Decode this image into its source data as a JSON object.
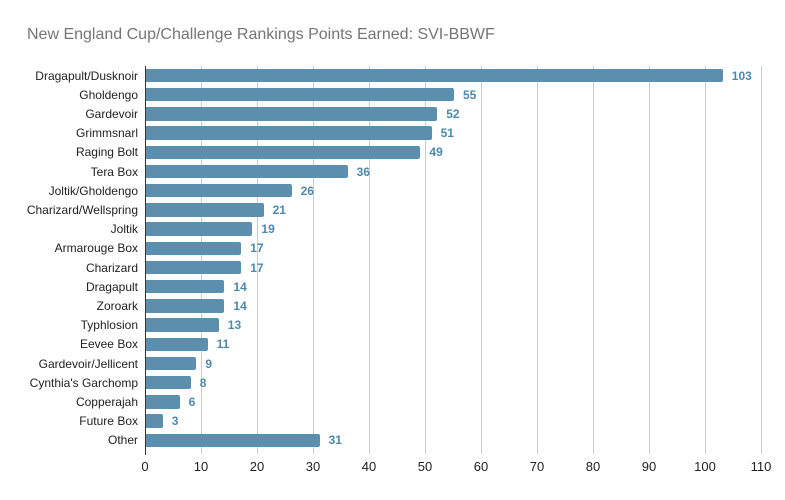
{
  "title": "New England Cup/Challenge Rankings Points Earned: SVI-BBWF",
  "colors": {
    "bar": "#5b8fad",
    "value_label": "#4d89ac",
    "title_text": "#757575",
    "axis_text": "#222222",
    "axis_line": "#333333",
    "gridline": "#cccccc",
    "background": "#ffffff"
  },
  "chart_data": {
    "type": "bar",
    "orientation": "horizontal",
    "title": "New England Cup/Challenge Rankings Points Earned: SVI-BBWF",
    "xlabel": "",
    "ylabel": "",
    "categories": [
      "Dragapult/Dusknoir",
      "Gholdengo",
      "Gardevoir",
      "Grimmsnarl",
      "Raging Bolt",
      "Tera Box",
      "Joltik/Gholdengo",
      "Charizard/Wellspring",
      "Joltik",
      "Armarouge Box",
      "Charizard",
      "Dragapult",
      "Zoroark",
      "Typhlosion",
      "Eevee Box",
      "Gardevoir/Jellicent",
      "Cynthia's Garchomp",
      "Copperajah",
      "Future Box",
      "Other"
    ],
    "values": [
      103,
      55,
      52,
      51,
      49,
      36,
      26,
      21,
      19,
      17,
      17,
      14,
      14,
      13,
      11,
      9,
      8,
      6,
      3,
      31
    ],
    "data_labels": [
      103,
      55,
      52,
      51,
      49,
      36,
      26,
      21,
      19,
      17,
      17,
      14,
      14,
      13,
      11,
      9,
      8,
      6,
      3,
      31
    ],
    "xlim": [
      0,
      110
    ],
    "xticks": [
      0,
      10,
      20,
      30,
      40,
      50,
      60,
      70,
      80,
      90,
      100,
      110
    ],
    "grid": true,
    "legend": false
  }
}
